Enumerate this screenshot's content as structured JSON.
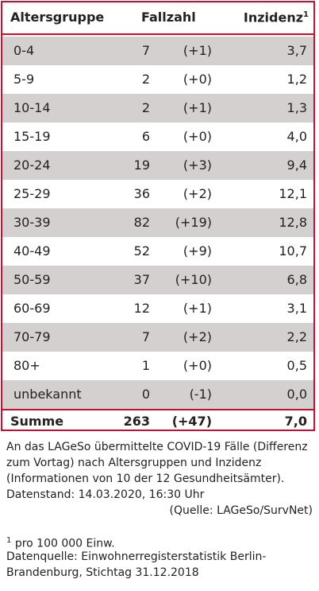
{
  "table": {
    "header": [
      "Altersgruppe",
      "Fallzahl",
      "Inzidenz"
    ],
    "header_mark": "1",
    "rows": [
      [
        "0-4",
        "7",
        "(+1)",
        "3,7"
      ],
      [
        "5-9",
        "2",
        "(+0)",
        "1,2"
      ],
      [
        "10-14",
        "2",
        "(+1)",
        "1,3"
      ],
      [
        "15-19",
        "6",
        "(+0)",
        "4,0"
      ],
      [
        "20-24",
        "19",
        "(+3)",
        "9,4"
      ],
      [
        "25-29",
        "36",
        "(+2)",
        "12,1"
      ],
      [
        "30-39",
        "82",
        "(+19)",
        "12,8"
      ],
      [
        "40-49",
        "52",
        "(+9)",
        "10,7"
      ],
      [
        "50-59",
        "37",
        "(+10)",
        "6,8"
      ],
      [
        "60-69",
        "12",
        "(+1)",
        "3,1"
      ],
      [
        "70-79",
        "7",
        "(+2)",
        "2,2"
      ],
      [
        "80+",
        "1",
        "(+0)",
        "0,5"
      ],
      [
        "unbekannt",
        "0",
        "(-1)",
        "0,0"
      ]
    ],
    "total": [
      "Summe",
      "263",
      "(+47)",
      "7,0"
    ]
  },
  "notes": {
    "lines": [
      "An das LAGeSo übermittelte COVID-19 Fälle (Differenz",
      "zum Vortag) nach Altersgruppen und Inzidenz",
      "(Informationen von 10 der 12 Gesundheitsämter).",
      "Datenstand: 14.03.2020, 16:30 Uhr"
    ],
    "source": "(Quelle: LAGeSo/SurvNet)"
  },
  "footnote": {
    "mark": "1",
    "lines": [
      "pro 100 000 Einw.",
      "Datenquelle: Einwohnerregisterstatistik Berlin-",
      "Brandenburg, Stichtag 31.12.2018"
    ]
  }
}
